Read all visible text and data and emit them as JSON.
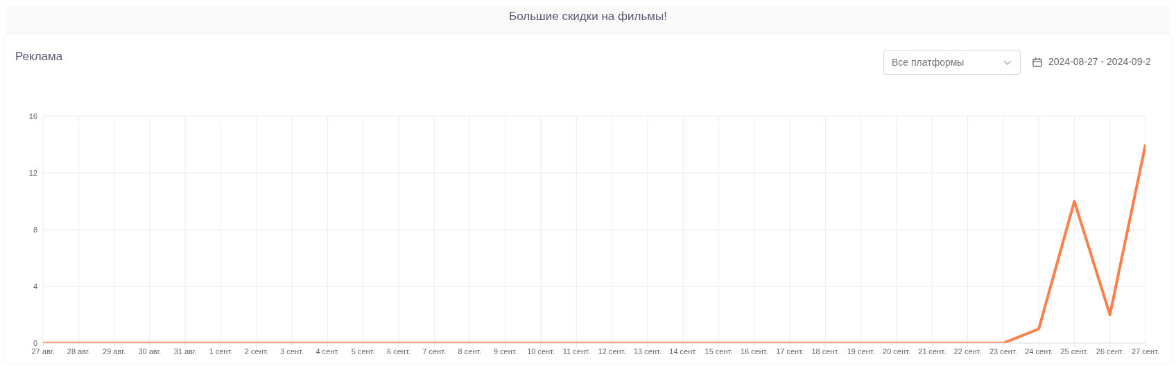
{
  "chart_data": {
    "type": "line",
    "title": "Большие скидки на фильмы!",
    "subtitle": "Реклама",
    "annotations": [
      "Все платформы",
      "2024-08-27 - 2024-09-2"
    ],
    "categories": [
      "27 авг.",
      "28 авг.",
      "29 авг.",
      "30 авг.",
      "31 авг.",
      "1 сент.",
      "2 сент.",
      "3 сент.",
      "4 сент.",
      "5 сент.",
      "6 сент.",
      "7 сент.",
      "8 сент.",
      "9 сент.",
      "10 сент.",
      "11 сент.",
      "12 сент.",
      "13 сент.",
      "14 сент.",
      "15 сент.",
      "16 сент.",
      "17 сент.",
      "18 сент.",
      "19 сент.",
      "20 сент.",
      "21 сент.",
      "22 сент.",
      "23 сент.",
      "24 сент.",
      "25 сент.",
      "26 сент.",
      "27 сент."
    ],
    "series": [
      {
        "color": "#ff7f4a",
        "values": [
          0,
          0,
          0,
          0,
          0,
          0,
          0,
          0,
          0,
          0,
          0,
          0,
          0,
          0,
          0,
          0,
          0,
          0,
          0,
          0,
          0,
          0,
          0,
          0,
          0,
          0,
          0,
          0,
          1,
          10,
          2,
          14
        ]
      }
    ],
    "ylim": [
      0,
      16
    ],
    "yticks": [
      0,
      4,
      8,
      12,
      16
    ],
    "grid": true,
    "marker": "none",
    "line_style": "solid"
  }
}
